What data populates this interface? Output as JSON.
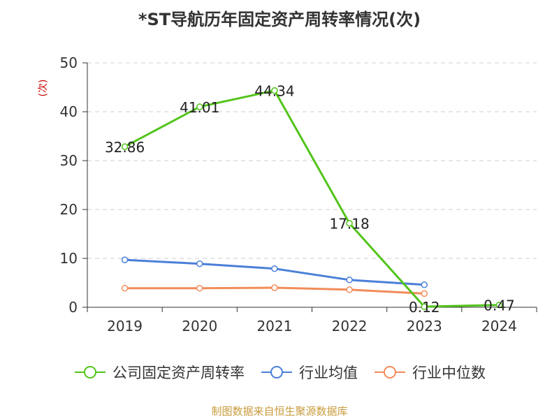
{
  "chart_data": {
    "type": "line",
    "title": "*ST导航历年固定资产周转率情况(次)",
    "ylabel": "(次)",
    "xlabel": "",
    "categories": [
      "2019",
      "2020",
      "2021",
      "2022",
      "2023",
      "2024"
    ],
    "ylim": [
      0,
      50
    ],
    "yticks": [
      0,
      10,
      20,
      30,
      40,
      50
    ],
    "grid": true,
    "legend_position": "bottom",
    "series": [
      {
        "name": "公司固定资产周转率",
        "color": "#52c41a",
        "values": [
          32.86,
          41.01,
          44.34,
          17.18,
          0.12,
          0.47
        ],
        "labels": [
          "32.86",
          "41.01",
          "44.34",
          "17.18",
          "0.12",
          "0.47"
        ]
      },
      {
        "name": "行业均值",
        "color": "#4a7fd8",
        "values": [
          9.7,
          8.9,
          7.9,
          5.6,
          4.6,
          null
        ]
      },
      {
        "name": "行业中位数",
        "color": "#f28c5a",
        "values": [
          3.9,
          3.9,
          4.0,
          3.6,
          2.8,
          null
        ]
      }
    ],
    "source": "制图数据来自恒生聚源数据库"
  }
}
